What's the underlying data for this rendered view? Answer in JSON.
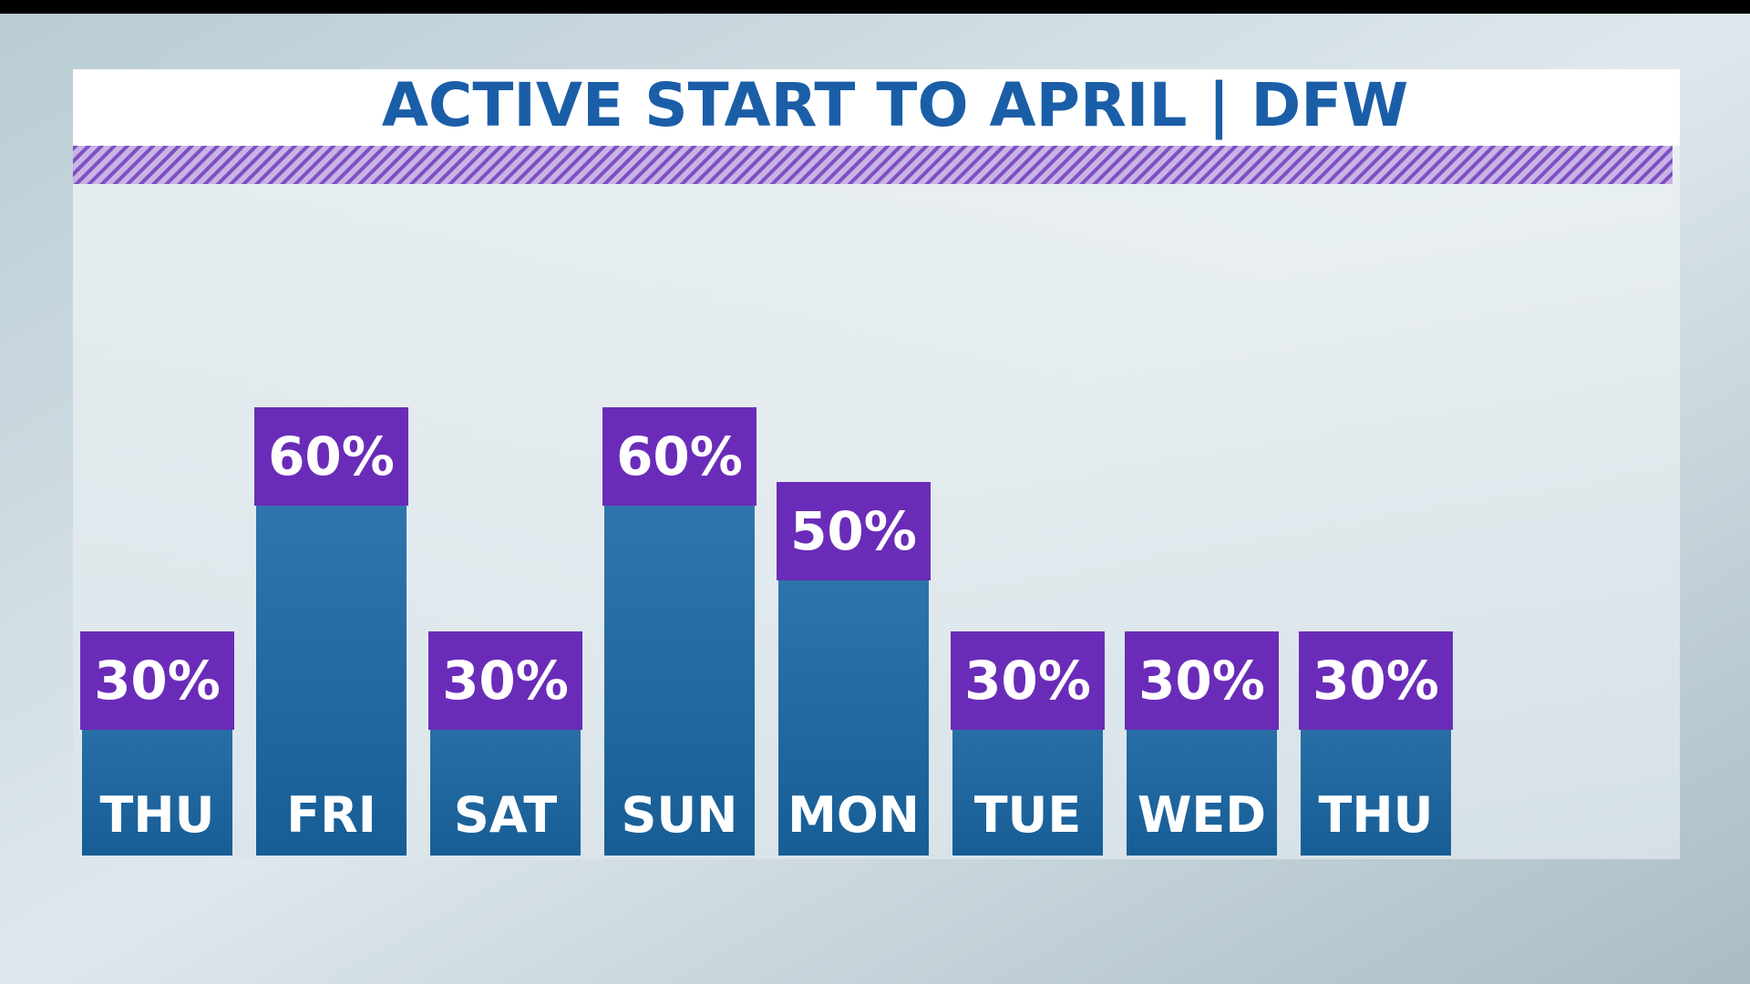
{
  "chart_data": {
    "type": "bar",
    "title": "ACTIVE START TO APRIL | DFW",
    "categories": [
      "THU",
      "FRI",
      "SAT",
      "SUN",
      "MON",
      "TUE",
      "WED",
      "THU"
    ],
    "values": [
      30,
      60,
      30,
      60,
      50,
      30,
      30,
      30
    ],
    "value_labels": [
      "30%",
      "60%",
      "30%",
      "60%",
      "50%",
      "30%",
      "30%",
      "30%"
    ],
    "color": "#1a6aaa",
    "label_color": "#6a2cb8"
  }
}
